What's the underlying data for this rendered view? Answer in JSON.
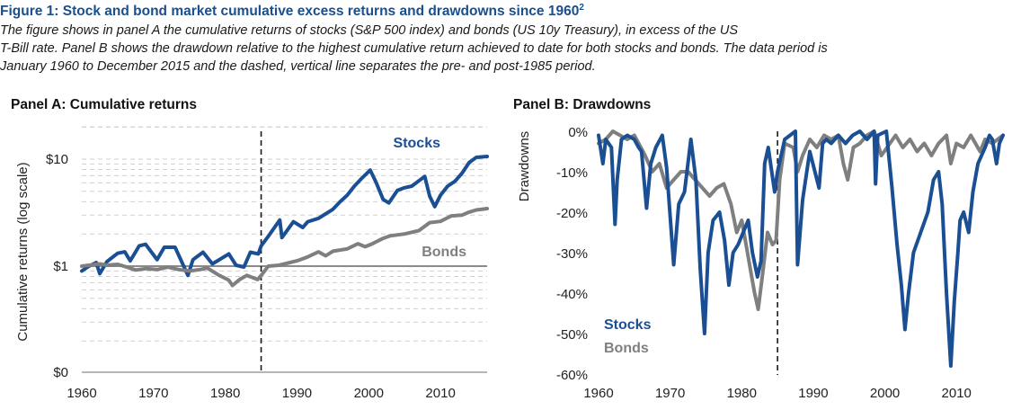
{
  "figure": {
    "title": "Figure 1: Stock and bond market cumulative excess returns and drawdowns since 1960",
    "title_sup": "2",
    "caption_lines": [
      "The figure shows in panel A the cumulative returns of stocks (S&P 500 index) and bonds (US 10y Treasury), in excess of the US",
      "T-Bill rate. Panel B shows the drawdown relative to the highest cumulative return achieved to date for both stocks and bonds. The data period is",
      "January 1960 to December 2015 and the dashed, vertical line separates the pre- and post-1985 period."
    ]
  },
  "colors": {
    "stocks": "#1b4f93",
    "bonds": "#7f7f7f",
    "grid": "#cfcfcf",
    "baseline": "#8a8a8a",
    "divider": "#1a1a1a"
  },
  "chart_data": [
    {
      "type": "line",
      "title": "Panel A: Cumulative returns",
      "ylabel": "Cumulative returns (log scale)",
      "xlabel": "",
      "y_scale": "log",
      "xlim": [
        1960,
        2016.5
      ],
      "x_ticks": [
        1960,
        1970,
        1980,
        1990,
        2000,
        2010
      ],
      "x_tick_labels": [
        "1960",
        "1970",
        "1980",
        "1990",
        "2000",
        "2010"
      ],
      "y_ticks": [
        0.1,
        1,
        10
      ],
      "y_tick_labels": [
        "$0",
        "$1",
        "$10"
      ],
      "ylim": [
        0.1,
        20
      ],
      "grid": "dashed horizontal",
      "divider_x": 1985,
      "series": [
        {
          "name": "Stocks",
          "x": [
            1960,
            1961,
            1962,
            1962.5,
            1963.5,
            1965,
            1966,
            1966.75,
            1968,
            1968.9,
            1970.5,
            1971.5,
            1973,
            1974.8,
            1975.5,
            1976.9,
            1978.2,
            1980.5,
            1981.5,
            1982.6,
            1983.5,
            1984.6,
            1985,
            1986,
            1987.6,
            1987.9,
            1989.5,
            1990.8,
            1991.5,
            1993,
            1995,
            1996,
            1997,
            1998,
            1999,
            2000.2,
            2001,
            2002,
            2002.8,
            2004,
            2005,
            2006,
            2007.8,
            2008.5,
            2009.2,
            2010,
            2011,
            2012,
            2013,
            2014,
            2015,
            2016.5
          ],
          "values": [
            0.9,
            1.0,
            1.08,
            0.85,
            1.1,
            1.32,
            1.36,
            1.12,
            1.55,
            1.6,
            1.15,
            1.5,
            1.5,
            0.82,
            1.15,
            1.35,
            1.05,
            1.3,
            1.02,
            0.98,
            1.35,
            1.3,
            1.55,
            1.9,
            2.7,
            1.85,
            2.6,
            2.3,
            2.6,
            2.8,
            3.4,
            4.0,
            4.6,
            5.6,
            6.6,
            7.9,
            6.1,
            4.2,
            3.9,
            5.1,
            5.4,
            5.6,
            6.9,
            4.5,
            3.6,
            4.6,
            5.6,
            6.2,
            7.4,
            9.3,
            10.4,
            10.6
          ]
        },
        {
          "name": "Bonds",
          "x": [
            1960,
            1961,
            1962.5,
            1963.5,
            1965,
            1966.5,
            1967.5,
            1969,
            1970.5,
            1972,
            1973.5,
            1975,
            1976.5,
            1977.5,
            1979,
            1980.5,
            1981,
            1982,
            1983,
            1984.5,
            1985,
            1986,
            1987.5,
            1988.5,
            1990,
            1991.5,
            1993,
            1994,
            1995,
            1997,
            1998.5,
            1999.5,
            2000.5,
            2002,
            2003,
            2005,
            2007,
            2008.5,
            2010,
            2011.5,
            2013,
            2014,
            2015,
            2016.5
          ],
          "values": [
            1.0,
            1.02,
            1.05,
            1.02,
            1.04,
            0.97,
            0.92,
            0.95,
            0.93,
            0.98,
            0.93,
            0.9,
            0.93,
            0.96,
            0.83,
            0.74,
            0.66,
            0.75,
            0.82,
            0.75,
            0.82,
            1.0,
            1.02,
            1.06,
            1.12,
            1.22,
            1.36,
            1.25,
            1.38,
            1.45,
            1.62,
            1.52,
            1.62,
            1.82,
            1.92,
            2.0,
            2.15,
            2.55,
            2.62,
            2.95,
            3.0,
            3.2,
            3.35,
            3.45
          ]
        }
      ]
    },
    {
      "type": "line",
      "title": "Panel B: Drawdowns",
      "ylabel": "Drawdowns",
      "xlabel": "",
      "xlim": [
        1960,
        2016.5
      ],
      "x_ticks": [
        1960,
        1970,
        1980,
        1990,
        2000,
        2010
      ],
      "x_tick_labels": [
        "1960",
        "1970",
        "1980",
        "1990",
        "2000",
        "2010"
      ],
      "y_ticks": [
        0,
        -10,
        -20,
        -30,
        -40,
        -50,
        -60
      ],
      "y_tick_labels": [
        "0%",
        "-10%",
        "-20%",
        "-30%",
        "-40%",
        "-50%",
        "-60%"
      ],
      "ylim": [
        -62,
        1
      ],
      "grid": "none",
      "legend": "bottom-left",
      "divider_x": 1985,
      "series": [
        {
          "name": "Stocks",
          "x": [
            1960,
            1960.6,
            1961,
            1961.8,
            1962.3,
            1962.6,
            1963.2,
            1964,
            1965,
            1965.6,
            1966,
            1966.7,
            1967.3,
            1968,
            1968.9,
            1969.5,
            1970.5,
            1971.2,
            1972,
            1972.9,
            1973.6,
            1974.2,
            1974.8,
            1975.3,
            1976,
            1976.9,
            1977.6,
            1978.2,
            1978.8,
            1979.5,
            1980.2,
            1980.9,
            1981.5,
            1982.2,
            1982.7,
            1983.2,
            1983.7,
            1984.6,
            1985,
            1986,
            1987.5,
            1987.8,
            1988.5,
            1989.5,
            1990.8,
            1991.3,
            1991.8,
            1992.5,
            1993.5,
            1994.5,
            1995.5,
            1996.5,
            1997.5,
            1998.5,
            1998.7,
            1999,
            2000.2,
            2001,
            2001.7,
            2002.3,
            2002.8,
            2003.3,
            2004,
            2005,
            2006,
            2006.8,
            2007.5,
            2008,
            2008.6,
            2009.2,
            2009.7,
            2010.2,
            2010.5,
            2011,
            2011.7,
            2012.3,
            2013,
            2014,
            2014.6,
            2015,
            2015.6,
            2016,
            2016.5
          ],
          "values": [
            -1,
            -8,
            -2,
            -4,
            -23,
            -12,
            -2,
            -1,
            -2,
            -4,
            -5,
            -19,
            -8,
            -4,
            -1,
            -9,
            -33,
            -18,
            -15,
            -2,
            -12,
            -34,
            -50,
            -30,
            -22,
            -20,
            -27,
            -38,
            -30,
            -28,
            -25,
            -22,
            -30,
            -36,
            -32,
            -8,
            -4,
            -15,
            -10,
            -2,
            0,
            -33,
            -17,
            -5,
            -14,
            -3,
            -2,
            -3,
            -1,
            -3,
            -1,
            0,
            -2,
            0,
            -13,
            -1,
            0,
            -14,
            -28,
            -38,
            -49,
            -40,
            -30,
            -25,
            -20,
            -12,
            -10,
            -18,
            -40,
            -58,
            -42,
            -30,
            -22,
            -20,
            -25,
            -15,
            -8,
            -4,
            -1,
            -2,
            -8,
            -3,
            -1
          ]
        },
        {
          "name": "Bonds",
          "x": [
            1960,
            1961,
            1962,
            1963,
            1964,
            1965,
            1966.5,
            1967.5,
            1968.5,
            1969.5,
            1970.5,
            1971.5,
            1972.5,
            1973.5,
            1974.5,
            1975.5,
            1976.5,
            1977.5,
            1978.5,
            1979.3,
            1980,
            1980.8,
            1981.3,
            1981.8,
            1982.3,
            1983,
            1983.6,
            1984.3,
            1984.8,
            1985.3,
            1986,
            1987.2,
            1987.8,
            1988.5,
            1989.5,
            1990.5,
            1991.5,
            1992.5,
            1993.5,
            1994.2,
            1994.8,
            1995.6,
            1996.5,
            1997.5,
            1998.5,
            1999.5,
            2000.3,
            2001.5,
            2002.5,
            2003.5,
            2004.5,
            2005.5,
            2006.5,
            2007.5,
            2008.6,
            2009.2,
            2010,
            2011,
            2012,
            2013.3,
            2014,
            2015,
            2016.5
          ],
          "values": [
            -3,
            -2,
            0,
            -1,
            -2,
            -1,
            -6,
            -10,
            -8,
            -14,
            -12,
            -10,
            -10,
            -12,
            -14,
            -16,
            -14,
            -13,
            -18,
            -25,
            -22,
            -30,
            -35,
            -40,
            -44,
            -34,
            -25,
            -28,
            -27,
            -12,
            -3,
            -4,
            -10,
            -6,
            -2,
            -4,
            -1,
            -2,
            -1,
            -8,
            -12,
            -4,
            -3,
            -1,
            0,
            -6,
            -4,
            -1,
            -4,
            -2,
            -5,
            -3,
            -6,
            -3,
            -1,
            -8,
            -3,
            -4,
            -1,
            -5,
            -2,
            -3,
            -1
          ]
        }
      ]
    }
  ]
}
